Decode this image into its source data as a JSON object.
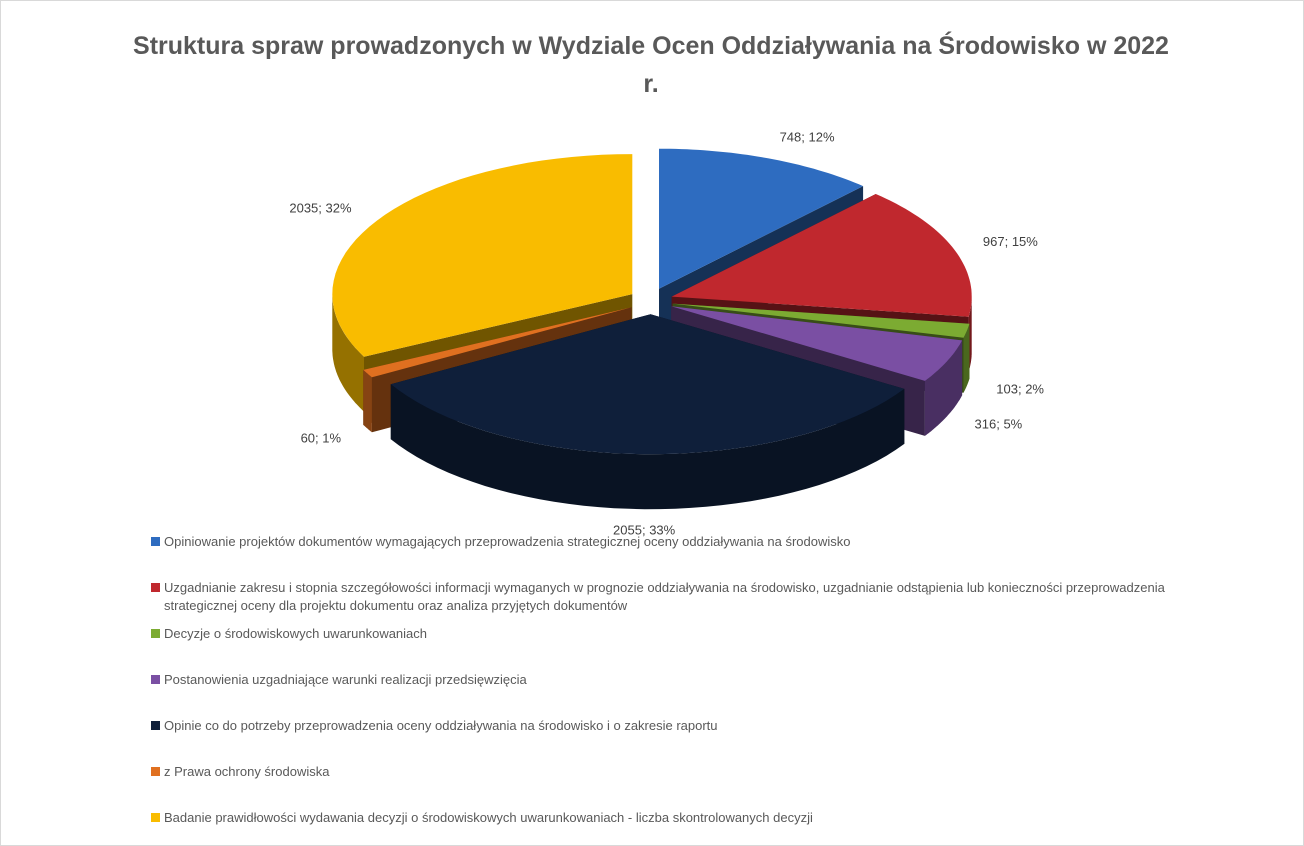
{
  "chart_data": {
    "type": "pie",
    "title": "Struktura spraw prowadzonych w Wydziale Ocen Oddziaływania na Środowisko w 2022 r.",
    "categories": [
      "Opiniowanie projektów dokumentów wymagających przeprowadzenia strategicznej oceny oddziaływania na środowisko",
      "Uzgadnianie zakresu i stopnia szczegółowości informacji wymaganych w prognozie oddziaływania na środowisko, uzgadnianie odstąpienia lub konieczności przeprowadzenia strategicznej oceny dla projektu dokumentu oraz analiza przyjętych dokumentów",
      "Decyzje o środowiskowych uwarunkowaniach",
      "Postanowienia uzgadniające warunki realizacji przedsięwzięcia",
      "Opinie co do potrzeby przeprowadzenia oceny oddziaływania na środowisko i o zakresie raportu",
      "z Prawa ochrony środowiska",
      "Badanie prawidłowości wydawania decyzji o środowiskowych uwarunkowaniach - liczba skontrolowanych decyzji"
    ],
    "values": [
      748,
      967,
      103,
      316,
      2055,
      60,
      2035
    ],
    "value_labels": [
      "748; 12%",
      "967; 15%",
      "103; 2%",
      "316; 5%",
      "2055; 33%",
      "60; 1%",
      "2035; 32%"
    ],
    "colors": [
      "#2e6cc0",
      "#c0282e",
      "#7cab32",
      "#7a4fa3",
      "#0f1f3a",
      "#e07020",
      "#f9bc00"
    ],
    "legend": "bottom"
  }
}
